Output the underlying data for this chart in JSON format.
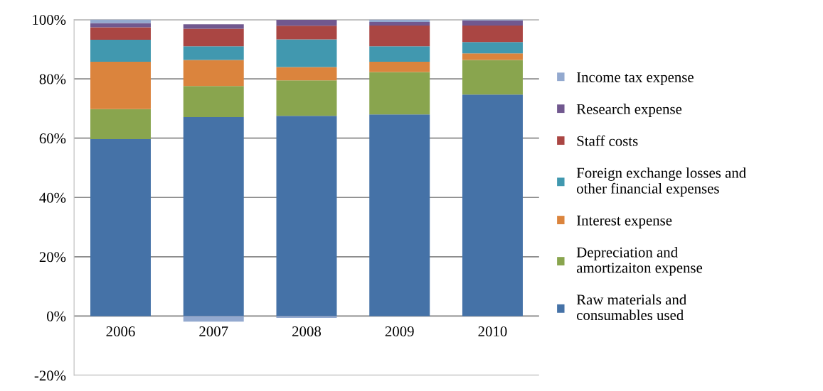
{
  "chart_data": {
    "type": "bar",
    "stacked": true,
    "categories": [
      "2006",
      "2007",
      "2008",
      "2009",
      "2010"
    ],
    "series": [
      {
        "name": "Raw materials and\nconsumables used",
        "color": "#4572a7",
        "values": [
          59.7,
          67.1,
          67.5,
          68.0,
          74.7
        ]
      },
      {
        "name": "Depreciation and\namortizaiton expense",
        "color": "#89a54e",
        "values": [
          10.1,
          10.5,
          12.0,
          14.3,
          11.7
        ]
      },
      {
        "name": "Interest expense",
        "color": "#db843d",
        "values": [
          16.0,
          8.8,
          4.5,
          3.5,
          2.2
        ]
      },
      {
        "name": "Foreign exchange losses and\nother financial expenses",
        "color": "#4198af",
        "values": [
          7.4,
          4.6,
          9.3,
          5.2,
          3.8
        ]
      },
      {
        "name": "Staff costs",
        "color": "#aa4643",
        "values": [
          4.2,
          5.9,
          4.6,
          7.0,
          5.6
        ]
      },
      {
        "name": "Research expense",
        "color": "#71588f",
        "values": [
          1.4,
          1.5,
          2.0,
          1.2,
          1.7
        ]
      },
      {
        "name": "Income tax expense",
        "color": "#93a9cf",
        "values": [
          1.2,
          -1.9,
          -0.6,
          0.8,
          0.3
        ]
      }
    ],
    "ylim": [
      -20,
      100
    ],
    "yticks": [
      {
        "value": -20,
        "label": "-20%"
      },
      {
        "value": 0,
        "label": "0%"
      },
      {
        "value": 20,
        "label": "20%"
      },
      {
        "value": 40,
        "label": "40%"
      },
      {
        "value": 60,
        "label": "60%"
      },
      {
        "value": 80,
        "label": "80%"
      },
      {
        "value": 100,
        "label": "100%"
      }
    ],
    "grid": "y",
    "legend": "right"
  }
}
